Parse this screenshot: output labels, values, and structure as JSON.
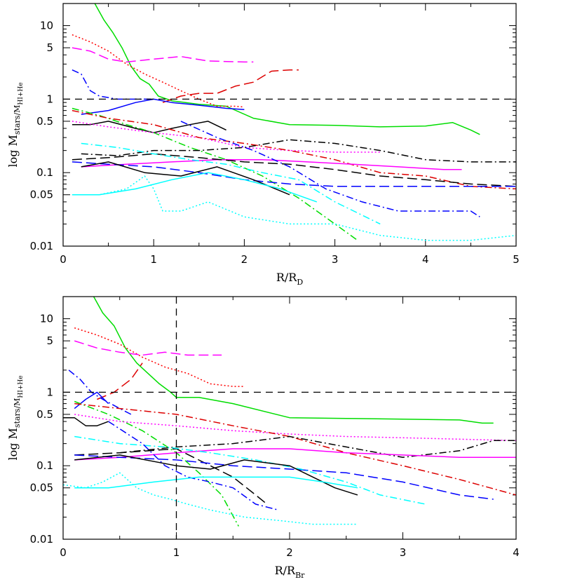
{
  "chart_data": [
    {
      "type": "line",
      "ylabel": "log M",
      "ylabel_sub": "stars/M",
      "ylabel_sub2": "HI+He",
      "xlabel": "R/R",
      "xlabel_sub": "D",
      "xlim": [
        0,
        5
      ],
      "ylim": [
        0.01,
        20
      ],
      "yscale": "log",
      "xticks": [
        "0",
        "1",
        "2",
        "3",
        "4",
        "5"
      ],
      "yticks": [
        "0.01",
        "0.05",
        "0.1",
        "0.5",
        "1",
        "5",
        "10"
      ],
      "ref_hlines": [
        1
      ],
      "ref_vlines": [],
      "series": [
        {
          "color": "#00dd00",
          "style": "solid",
          "x": [
            0.35,
            0.45,
            0.55,
            0.65,
            0.75,
            0.85,
            0.95,
            1.05,
            1.2,
            1.5,
            1.8,
            2.1,
            2.5,
            3.0,
            3.5,
            4.0,
            4.3,
            4.5,
            4.6
          ],
          "y": [
            20,
            12,
            8,
            5,
            2.8,
            1.9,
            1.6,
            1.1,
            0.95,
            0.85,
            0.8,
            0.55,
            0.45,
            0.44,
            0.42,
            0.43,
            0.48,
            0.38,
            0.33
          ]
        },
        {
          "color": "#ff0000",
          "style": "dotted",
          "x": [
            0.1,
            0.3,
            0.5,
            0.7,
            0.9,
            1.1,
            1.3,
            1.5,
            1.7,
            1.9,
            2.0
          ],
          "y": [
            7.5,
            6,
            4.5,
            3,
            2.2,
            1.7,
            1.3,
            1.0,
            0.8,
            0.8,
            0.78
          ]
        },
        {
          "color": "#ff00ff",
          "style": "longdash",
          "x": [
            0.1,
            0.3,
            0.5,
            0.7,
            1.0,
            1.3,
            1.6,
            2.0,
            2.1
          ],
          "y": [
            5,
            4.5,
            3.5,
            3.2,
            3.5,
            3.8,
            3.3,
            3.2,
            3.2
          ]
        },
        {
          "color": "#dd0000",
          "style": "longdash",
          "x": [
            1.1,
            1.3,
            1.5,
            1.7,
            1.9,
            2.1,
            2.3,
            2.5,
            2.6
          ],
          "y": [
            0.9,
            1.1,
            1.2,
            1.2,
            1.5,
            1.7,
            2.4,
            2.5,
            2.5
          ]
        },
        {
          "color": "#0000ff",
          "style": "dashdot",
          "x": [
            0.1,
            0.2,
            0.3,
            0.4,
            0.6,
            0.8,
            1.0
          ],
          "y": [
            2.5,
            2.2,
            1.3,
            1.1,
            1.0,
            1.0,
            1.0
          ]
        },
        {
          "color": "#0000ff",
          "style": "solid",
          "x": [
            0.2,
            0.5,
            0.8,
            1.0,
            1.2,
            1.4,
            1.6,
            1.8,
            2.0
          ],
          "y": [
            0.62,
            0.7,
            0.9,
            1.0,
            0.9,
            0.85,
            0.8,
            0.75,
            0.72
          ]
        },
        {
          "color": "#000000",
          "style": "solid",
          "x": [
            0.1,
            0.3,
            0.5,
            0.8,
            1.0,
            1.2,
            1.4,
            1.6,
            1.8
          ],
          "y": [
            0.45,
            0.45,
            0.5,
            0.4,
            0.35,
            0.4,
            0.45,
            0.5,
            0.38
          ]
        },
        {
          "color": "#00dd00",
          "style": "dashdot",
          "x": [
            0.1,
            0.4,
            0.7,
            1.0,
            1.4,
            1.8,
            2.2,
            2.6,
            3.0,
            3.25
          ],
          "y": [
            0.75,
            0.6,
            0.45,
            0.35,
            0.22,
            0.15,
            0.09,
            0.045,
            0.02,
            0.012
          ]
        },
        {
          "color": "#ff00ff",
          "style": "dotted",
          "x": [
            0.1,
            0.5,
            1.0,
            1.5,
            2.0,
            2.5,
            3.0,
            3.5
          ],
          "y": [
            0.5,
            0.42,
            0.35,
            0.3,
            0.22,
            0.2,
            0.19,
            0.19
          ]
        },
        {
          "color": "#dd0000",
          "style": "dashdot",
          "x": [
            0.1,
            0.5,
            1.0,
            1.5,
            2.0,
            2.5,
            3.0,
            3.5,
            4.0,
            4.5,
            5.0
          ],
          "y": [
            0.7,
            0.55,
            0.45,
            0.3,
            0.25,
            0.2,
            0.15,
            0.1,
            0.09,
            0.065,
            0.06
          ]
        },
        {
          "color": "#000000",
          "style": "dashdot",
          "x": [
            0.2,
            0.6,
            1.0,
            1.5,
            2.0,
            2.5,
            3.0,
            3.5,
            4.0,
            4.5,
            5.0
          ],
          "y": [
            0.18,
            0.17,
            0.2,
            0.2,
            0.22,
            0.28,
            0.25,
            0.2,
            0.15,
            0.14,
            0.14
          ]
        },
        {
          "color": "#ff00ff",
          "style": "solid",
          "x": [
            0.2,
            0.7,
            1.2,
            1.7,
            2.2,
            2.7,
            3.2,
            3.7,
            4.2,
            4.4
          ],
          "y": [
            0.12,
            0.13,
            0.14,
            0.15,
            0.15,
            0.14,
            0.13,
            0.12,
            0.11,
            0.11
          ]
        },
        {
          "color": "#000000",
          "style": "longdash",
          "x": [
            0.1,
            0.5,
            1.0,
            1.5,
            2.0,
            2.5,
            3.0,
            3.5,
            4.0,
            4.5,
            5.0
          ],
          "y": [
            0.15,
            0.16,
            0.18,
            0.16,
            0.14,
            0.13,
            0.11,
            0.09,
            0.08,
            0.07,
            0.065
          ]
        },
        {
          "color": "#0000ff",
          "style": "longdash",
          "x": [
            0.1,
            0.5,
            1.0,
            1.5,
            2.0,
            2.5,
            3.0,
            3.5,
            4.0,
            4.5,
            5.0
          ],
          "y": [
            0.14,
            0.13,
            0.12,
            0.1,
            0.08,
            0.07,
            0.065,
            0.065,
            0.065,
            0.065,
            0.065
          ]
        },
        {
          "color": "#00ffff",
          "style": "dashdot",
          "x": [
            0.2,
            0.6,
            1.0,
            1.4,
            1.8,
            2.2,
            2.6,
            3.0,
            3.5
          ],
          "y": [
            0.25,
            0.22,
            0.18,
            0.15,
            0.13,
            0.1,
            0.08,
            0.04,
            0.02
          ]
        },
        {
          "color": "#000000",
          "style": "solid",
          "x": [
            0.2,
            0.5,
            0.9,
            1.3,
            1.7,
            2.1,
            2.5
          ],
          "y": [
            0.12,
            0.14,
            0.1,
            0.09,
            0.12,
            0.08,
            0.05
          ]
        },
        {
          "color": "#0000ff",
          "style": "dashdot",
          "x": [
            1.3,
            1.7,
            2.1,
            2.5,
            2.9,
            3.3,
            3.7,
            4.1,
            4.5,
            4.6
          ],
          "y": [
            0.5,
            0.3,
            0.2,
            0.12,
            0.06,
            0.04,
            0.03,
            0.03,
            0.03,
            0.025
          ]
        },
        {
          "color": "#00ffff",
          "style": "solid",
          "x": [
            0.1,
            0.4,
            0.8,
            1.2,
            1.6,
            2.0,
            2.4,
            2.8
          ],
          "y": [
            0.05,
            0.05,
            0.06,
            0.08,
            0.1,
            0.08,
            0.06,
            0.04
          ]
        },
        {
          "color": "#00ffff",
          "style": "dotted",
          "x": [
            0.1,
            0.4,
            0.7,
            0.9,
            1.0,
            1.1,
            1.3,
            1.6,
            2.0,
            2.5,
            3.0,
            3.5,
            4.0,
            4.5,
            5.0
          ],
          "y": [
            0.05,
            0.05,
            0.06,
            0.09,
            0.06,
            0.03,
            0.03,
            0.04,
            0.025,
            0.02,
            0.02,
            0.014,
            0.012,
            0.012,
            0.014
          ]
        }
      ]
    },
    {
      "type": "line",
      "ylabel": "log M",
      "ylabel_sub": "stars/M",
      "ylabel_sub2": "HI+He",
      "xlabel": "R/R",
      "xlabel_sub": "Br",
      "xlim": [
        0,
        4
      ],
      "ylim": [
        0.01,
        20
      ],
      "yscale": "log",
      "xticks": [
        "0",
        "1",
        "2",
        "3",
        "4"
      ],
      "yticks": [
        "0.01",
        "0.05",
        "0.1",
        "0.5",
        "1",
        "5",
        "10"
      ],
      "ref_hlines": [
        1
      ],
      "ref_vlines": [
        1
      ],
      "series": [
        {
          "color": "#00dd00",
          "style": "solid",
          "x": [
            0.27,
            0.35,
            0.45,
            0.55,
            0.65,
            0.75,
            0.85,
            0.95,
            1.0,
            1.2,
            1.5,
            2.0,
            2.5,
            3.0,
            3.5,
            3.7,
            3.8
          ],
          "y": [
            20,
            12,
            8,
            4,
            2.5,
            1.8,
            1.3,
            1.0,
            0.85,
            0.85,
            0.7,
            0.45,
            0.44,
            0.43,
            0.42,
            0.38,
            0.38
          ]
        },
        {
          "color": "#ff0000",
          "style": "dotted",
          "x": [
            0.1,
            0.3,
            0.5,
            0.7,
            0.9,
            1.1,
            1.3,
            1.5,
            1.6
          ],
          "y": [
            7.5,
            6,
            4.5,
            3,
            2.2,
            1.8,
            1.3,
            1.2,
            1.2
          ]
        },
        {
          "color": "#ff00ff",
          "style": "longdash",
          "x": [
            0.1,
            0.3,
            0.5,
            0.7,
            0.9,
            1.1,
            1.4
          ],
          "y": [
            5,
            4,
            3.5,
            3.2,
            3.5,
            3.2,
            3.2
          ]
        },
        {
          "color": "#dd0000",
          "style": "longdash",
          "x": [
            0.3,
            0.45,
            0.6,
            0.7
          ],
          "y": [
            0.8,
            1.0,
            1.5,
            2.5
          ]
        },
        {
          "color": "#0000ff",
          "style": "dashdot",
          "x": [
            0.05,
            0.15,
            0.25,
            0.35,
            0.5,
            0.6
          ],
          "y": [
            2.0,
            1.5,
            1.0,
            0.8,
            0.6,
            0.5
          ]
        },
        {
          "color": "#0000ff",
          "style": "solid",
          "x": [
            0.1,
            0.2,
            0.3,
            0.4
          ],
          "y": [
            0.6,
            0.8,
            1.0,
            0.7
          ]
        },
        {
          "color": "#000000",
          "style": "solid",
          "x": [
            0.0,
            0.1,
            0.2,
            0.3,
            0.4
          ],
          "y": [
            0.45,
            0.45,
            0.35,
            0.35,
            0.4
          ]
        },
        {
          "color": "#00dd00",
          "style": "dashdot",
          "x": [
            0.1,
            0.4,
            0.7,
            1.0,
            1.2,
            1.4,
            1.55
          ],
          "y": [
            0.75,
            0.5,
            0.3,
            0.15,
            0.08,
            0.04,
            0.015
          ]
        },
        {
          "color": "#ff00ff",
          "style": "dotted",
          "x": [
            0.1,
            0.5,
            1.0,
            1.5,
            2.0,
            2.5,
            3.0,
            3.5,
            4.0
          ],
          "y": [
            0.5,
            0.4,
            0.35,
            0.3,
            0.27,
            0.25,
            0.24,
            0.23,
            0.22
          ]
        },
        {
          "color": "#dd0000",
          "style": "dashdot",
          "x": [
            0.1,
            0.5,
            1.0,
            1.5,
            2.0,
            2.5,
            3.0,
            3.5,
            4.0
          ],
          "y": [
            0.7,
            0.6,
            0.5,
            0.35,
            0.25,
            0.15,
            0.1,
            0.065,
            0.04
          ]
        },
        {
          "color": "#000000",
          "style": "dashdot",
          "x": [
            0.5,
            1.0,
            1.5,
            2.0,
            2.5,
            3.0,
            3.5,
            3.8,
            4.0
          ],
          "y": [
            0.15,
            0.18,
            0.2,
            0.25,
            0.18,
            0.13,
            0.16,
            0.22,
            0.22
          ]
        },
        {
          "color": "#ff00ff",
          "style": "solid",
          "x": [
            0.1,
            0.5,
            1.0,
            1.5,
            2.0,
            2.5,
            3.0,
            3.5,
            4.0
          ],
          "y": [
            0.12,
            0.13,
            0.15,
            0.17,
            0.17,
            0.15,
            0.14,
            0.13,
            0.13
          ]
        },
        {
          "color": "#000000",
          "style": "longdash",
          "x": [
            0.1,
            0.5,
            1.0,
            1.3,
            1.5,
            1.7,
            1.8
          ],
          "y": [
            0.14,
            0.15,
            0.17,
            0.1,
            0.07,
            0.04,
            0.03
          ]
        },
        {
          "color": "#0000ff",
          "style": "longdash",
          "x": [
            0.1,
            0.5,
            1.0,
            1.5,
            2.0,
            2.5,
            3.0,
            3.5,
            3.8
          ],
          "y": [
            0.14,
            0.13,
            0.12,
            0.1,
            0.09,
            0.08,
            0.06,
            0.04,
            0.035
          ]
        },
        {
          "color": "#00ffff",
          "style": "dashdot",
          "x": [
            0.1,
            0.5,
            0.9,
            1.3,
            1.7,
            2.1,
            2.5,
            2.8,
            3.2
          ],
          "y": [
            0.25,
            0.2,
            0.18,
            0.15,
            0.12,
            0.09,
            0.06,
            0.04,
            0.03
          ]
        },
        {
          "color": "#000000",
          "style": "solid",
          "x": [
            0.1,
            0.5,
            1.0,
            1.3,
            1.6,
            2.0,
            2.4,
            2.6
          ],
          "y": [
            0.12,
            0.14,
            0.1,
            0.09,
            0.12,
            0.1,
            0.05,
            0.04
          ]
        },
        {
          "color": "#0000ff",
          "style": "dashdot",
          "x": [
            0.4,
            0.7,
            0.9,
            1.1,
            1.3,
            1.5,
            1.7,
            1.9
          ],
          "y": [
            0.4,
            0.2,
            0.1,
            0.07,
            0.06,
            0.05,
            0.03,
            0.025
          ]
        },
        {
          "color": "#00ffff",
          "style": "solid",
          "x": [
            0.1,
            0.4,
            0.8,
            1.2,
            1.6,
            2.0,
            2.3,
            2.6
          ],
          "y": [
            0.05,
            0.05,
            0.06,
            0.07,
            0.07,
            0.07,
            0.06,
            0.05
          ]
        },
        {
          "color": "#00ffff",
          "style": "dotted",
          "x": [
            0.0,
            0.2,
            0.35,
            0.5,
            0.65,
            0.8,
            0.95,
            1.1,
            1.3,
            1.6,
            1.9,
            2.2,
            2.6
          ],
          "y": [
            0.055,
            0.05,
            0.06,
            0.08,
            0.05,
            0.04,
            0.035,
            0.03,
            0.025,
            0.02,
            0.018,
            0.016,
            0.016
          ]
        }
      ]
    }
  ]
}
